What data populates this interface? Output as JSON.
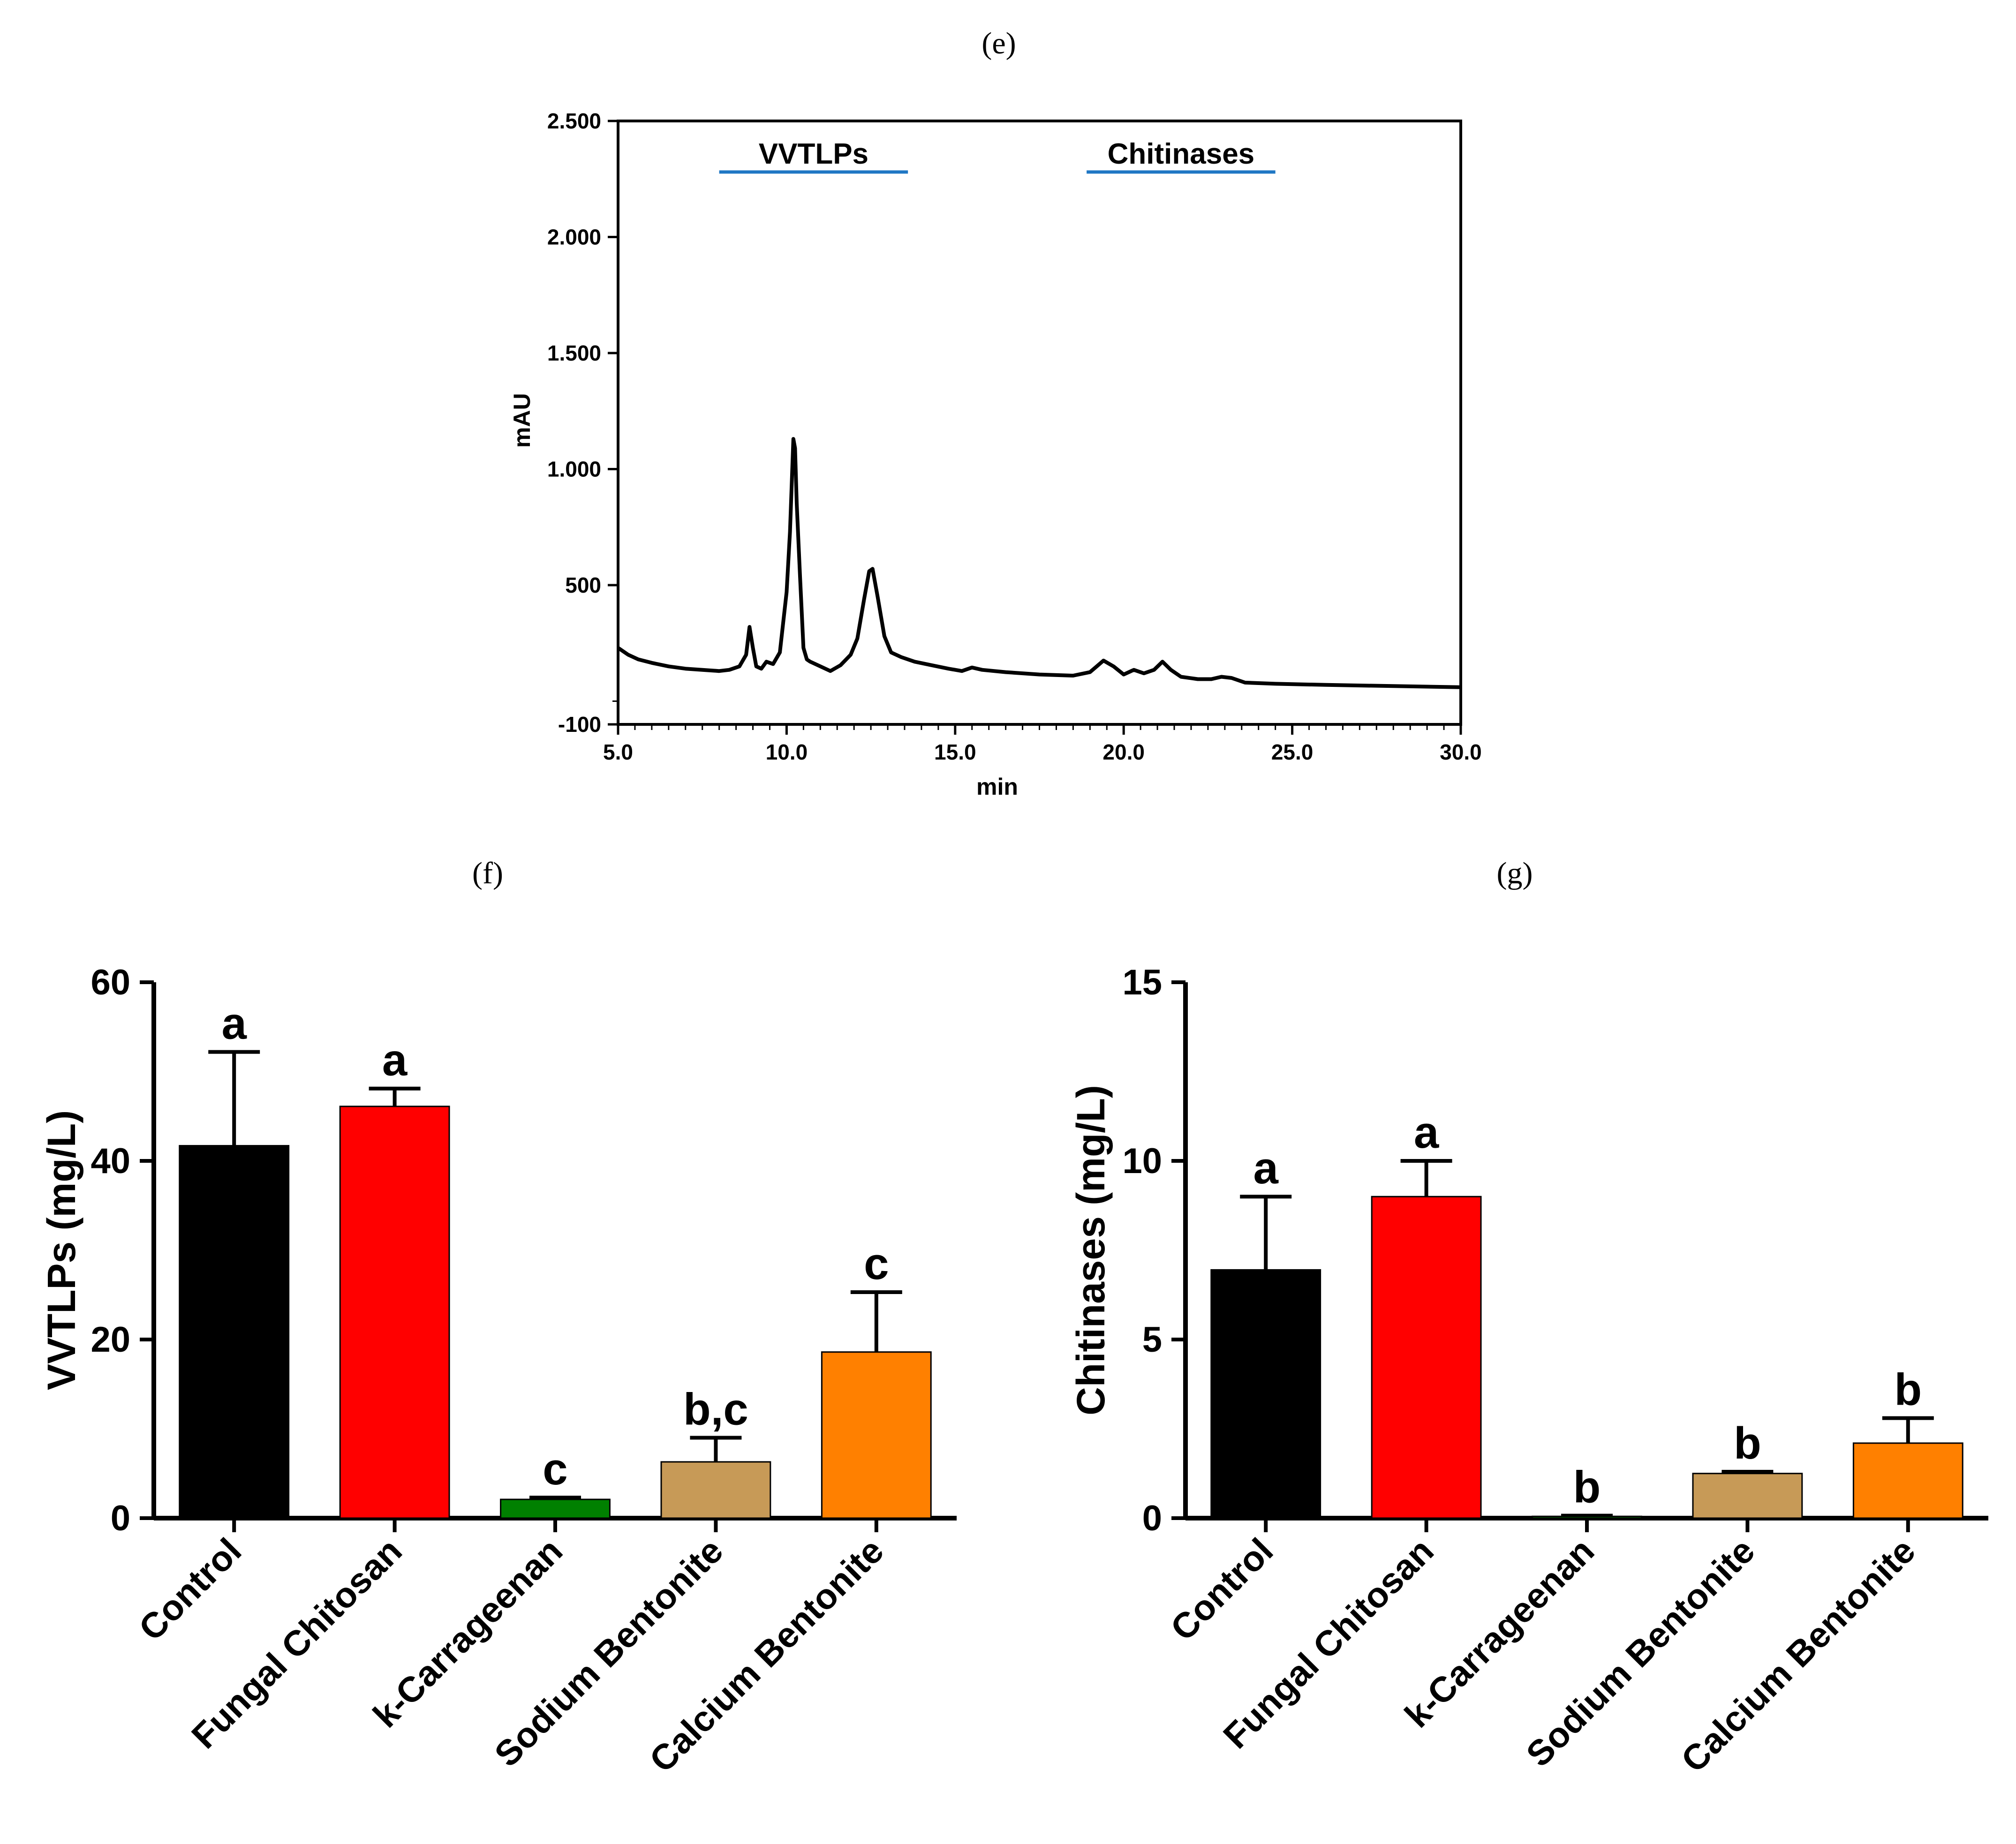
{
  "panels": {
    "e_label": "(e)",
    "f_label": "(f)",
    "g_label": "(g)"
  },
  "chart_data": [
    {
      "id": "e",
      "type": "line",
      "xlabel": "min",
      "ylabel": "mAU",
      "xlim": [
        5.0,
        30.0
      ],
      "ylim": [
        -100,
        2500
      ],
      "xticks": [
        5.0,
        10.0,
        15.0,
        20.0,
        25.0,
        30.0
      ],
      "xtick_labels": [
        "5.0",
        "10.0",
        "15.0",
        "20.0",
        "25.0",
        "30.0"
      ],
      "yticks": [
        -100,
        500,
        1000,
        1500,
        2000,
        2500
      ],
      "ytick_labels": [
        "-100",
        "500",
        "1.000",
        "1.500",
        "2.000",
        "2.500"
      ],
      "grid": false,
      "annotations": [
        {
          "text": "VVTLPs",
          "x_start": 8.0,
          "x_end": 13.6,
          "y": 2280,
          "color": "#1f77c4"
        },
        {
          "text": "Chitinases",
          "x_start": 18.9,
          "x_end": 24.5,
          "y": 2280,
          "color": "#1f77c4"
        }
      ],
      "series": [
        {
          "color": "#000000",
          "x": [
            5.0,
            5.3,
            5.6,
            6.0,
            6.5,
            7.0,
            7.5,
            8.0,
            8.3,
            8.6,
            8.8,
            8.9,
            9.0,
            9.1,
            9.25,
            9.4,
            9.6,
            9.8,
            10.0,
            10.1,
            10.2,
            10.25,
            10.3,
            10.4,
            10.5,
            10.6,
            10.7,
            10.85,
            11.0,
            11.3,
            11.6,
            11.9,
            12.1,
            12.3,
            12.45,
            12.55,
            12.7,
            12.9,
            13.1,
            13.4,
            13.8,
            14.3,
            14.8,
            15.2,
            15.5,
            15.8,
            16.5,
            17.5,
            18.5,
            19.0,
            19.2,
            19.4,
            19.7,
            20.0,
            20.3,
            20.6,
            20.9,
            21.15,
            21.4,
            21.7,
            22.2,
            22.6,
            22.9,
            23.2,
            23.6,
            24.5,
            26.0,
            28.0,
            30.0
          ],
          "y": [
            230,
            200,
            180,
            165,
            150,
            140,
            135,
            130,
            135,
            150,
            200,
            320,
            230,
            150,
            140,
            170,
            160,
            210,
            470,
            730,
            1130,
            1090,
            850,
            530,
            230,
            180,
            170,
            160,
            150,
            130,
            155,
            200,
            270,
            440,
            560,
            570,
            450,
            280,
            210,
            190,
            170,
            155,
            140,
            130,
            145,
            135,
            125,
            115,
            110,
            125,
            150,
            175,
            150,
            115,
            135,
            120,
            135,
            170,
            135,
            105,
            95,
            95,
            105,
            100,
            80,
            75,
            70,
            65,
            60
          ]
        }
      ]
    },
    {
      "id": "f",
      "type": "bar",
      "ylabel": "VVTLPs (mg/L)",
      "xlabel": "",
      "ylim": [
        0,
        60
      ],
      "yticks": [
        0,
        20,
        40,
        60
      ],
      "grid": false,
      "categories": [
        "Control",
        "Fungal Chitosan",
        "k-Carrageenan",
        "Sodium Bentonite",
        "Calcium Bentonite"
      ],
      "values": [
        41.7,
        46.1,
        2.1,
        6.3,
        18.6
      ],
      "errors": [
        10.5,
        2.0,
        0.2,
        2.7,
        6.7
      ],
      "letters": [
        "a",
        "a",
        "c",
        "b,c",
        "c"
      ],
      "colors": [
        "#000000",
        "#ff0000",
        "#008000",
        "#c79a57",
        "#ff8000"
      ]
    },
    {
      "id": "g",
      "type": "bar",
      "ylabel": "Chitinases (mg/L)",
      "xlabel": "",
      "ylim": [
        0,
        15
      ],
      "yticks": [
        0,
        5,
        10,
        15
      ],
      "grid": false,
      "categories": [
        "Control",
        "Fungal Chitosan",
        "k-Carrageenan",
        "Sodium Bentonite",
        "Calcium Bentonite"
      ],
      "values": [
        6.95,
        9.0,
        0.05,
        1.25,
        2.1
      ],
      "errors": [
        2.05,
        1.0,
        0.02,
        0.05,
        0.7
      ],
      "letters": [
        "a",
        "a",
        "b",
        "b",
        "b"
      ],
      "colors": [
        "#000000",
        "#ff0000",
        "#008000",
        "#c79a57",
        "#ff8000"
      ]
    }
  ]
}
